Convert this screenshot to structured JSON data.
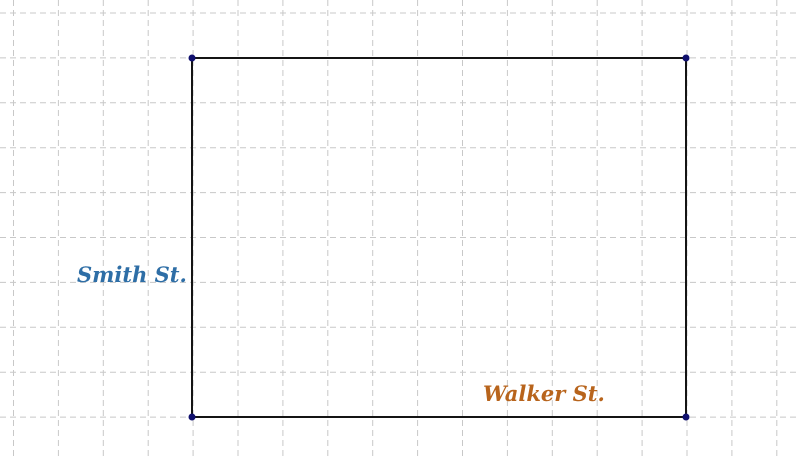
{
  "labels": {
    "left_street": "Smith St.",
    "bottom_street": "Walker St."
  },
  "colors": {
    "left_street": "#2e6ea6",
    "bottom_street": "#b8641c",
    "edges": "#141414",
    "vertices": "#10106e",
    "grid": "#c8c8c8"
  },
  "grid": {
    "visible": true,
    "style": "dashed"
  }
}
